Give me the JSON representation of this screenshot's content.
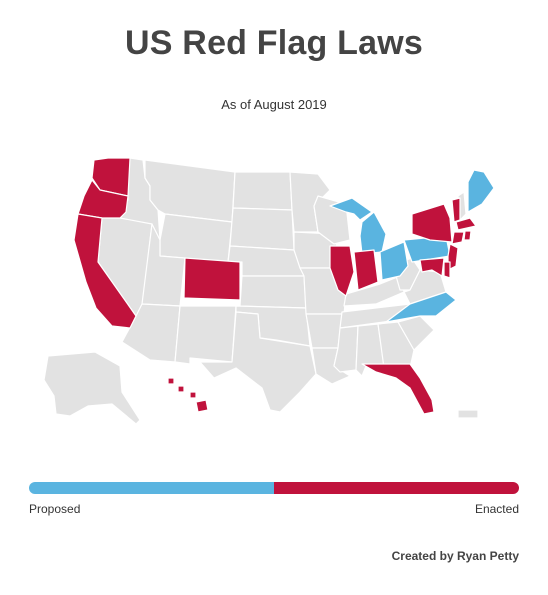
{
  "title": "US Red Flag Laws",
  "subtitle": "As of August 2019",
  "legend": {
    "left_label": "Proposed",
    "right_label": "Enacted",
    "proposed_fraction": 0.5,
    "enacted_fraction": 0.5
  },
  "credit": "Created by Ryan Petty",
  "colors": {
    "enacted": "#c0123c",
    "proposed": "#5ab4e0",
    "none": "#e2e2e2"
  },
  "states": {
    "enacted": [
      "WA",
      "OR",
      "CA",
      "CO",
      "IL",
      "IN",
      "FL",
      "NY",
      "VT",
      "MA",
      "CT",
      "RI",
      "NJ",
      "DE",
      "MD",
      "HI",
      "DC"
    ],
    "proposed": [
      "ME",
      "MI",
      "OH",
      "PA",
      "NC"
    ]
  }
}
